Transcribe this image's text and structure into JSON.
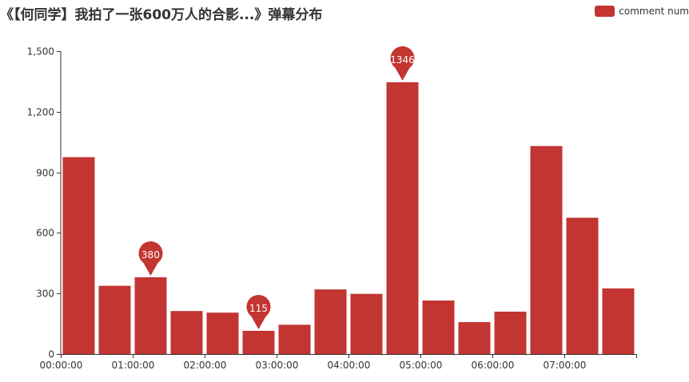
{
  "chart_data": {
    "type": "bar",
    "title": "《【何同学】我拍了一张600万人的合影...》弹幕分布",
    "xlabel": "",
    "ylabel": "",
    "ylim": [
      0,
      1500
    ],
    "yticks": [
      0,
      300,
      600,
      900,
      1200,
      1500
    ],
    "ytick_labels": [
      "0",
      "300",
      "600",
      "900",
      "1,200",
      "1,500"
    ],
    "xlim_seconds": [
      0,
      28800
    ],
    "xticks": [
      "00:00:00",
      "01:00:00",
      "02:00:00",
      "03:00:00",
      "04:00:00",
      "05:00:00",
      "06:00:00",
      "07:00:00"
    ],
    "grid": false,
    "legend_position": "top-right",
    "series": [
      {
        "name": "comment num",
        "color": "#c23531",
        "bars": [
          {
            "start": "00:00:00",
            "end": "00:30:00",
            "value": 975
          },
          {
            "start": "00:30:00",
            "end": "01:00:00",
            "value": 338
          },
          {
            "start": "01:00:00",
            "end": "01:30:00",
            "value": 380
          },
          {
            "start": "01:30:00",
            "end": "02:00:00",
            "value": 213
          },
          {
            "start": "02:00:00",
            "end": "02:30:00",
            "value": 205
          },
          {
            "start": "02:30:00",
            "end": "03:00:00",
            "value": 115
          },
          {
            "start": "03:00:00",
            "end": "03:30:00",
            "value": 145
          },
          {
            "start": "03:30:00",
            "end": "04:00:00",
            "value": 320
          },
          {
            "start": "04:00:00",
            "end": "04:30:00",
            "value": 298
          },
          {
            "start": "04:30:00",
            "end": "05:00:00",
            "value": 1346
          },
          {
            "start": "05:00:00",
            "end": "05:30:00",
            "value": 265
          },
          {
            "start": "05:30:00",
            "end": "06:00:00",
            "value": 158
          },
          {
            "start": "06:00:00",
            "end": "06:30:00",
            "value": 210
          },
          {
            "start": "06:30:00",
            "end": "07:00:00",
            "value": 1030
          },
          {
            "start": "07:00:00",
            "end": "07:30:00",
            "value": 675
          },
          {
            "start": "07:30:00",
            "end": "08:00:00",
            "value": 325
          }
        ]
      }
    ],
    "annotations": [
      {
        "label": "380",
        "at": "01:30:00",
        "bar": 2
      },
      {
        "label": "115",
        "at": "03:00:00",
        "bar": 5
      },
      {
        "label": "1346",
        "at": "05:00:00",
        "bar": 9
      }
    ]
  }
}
